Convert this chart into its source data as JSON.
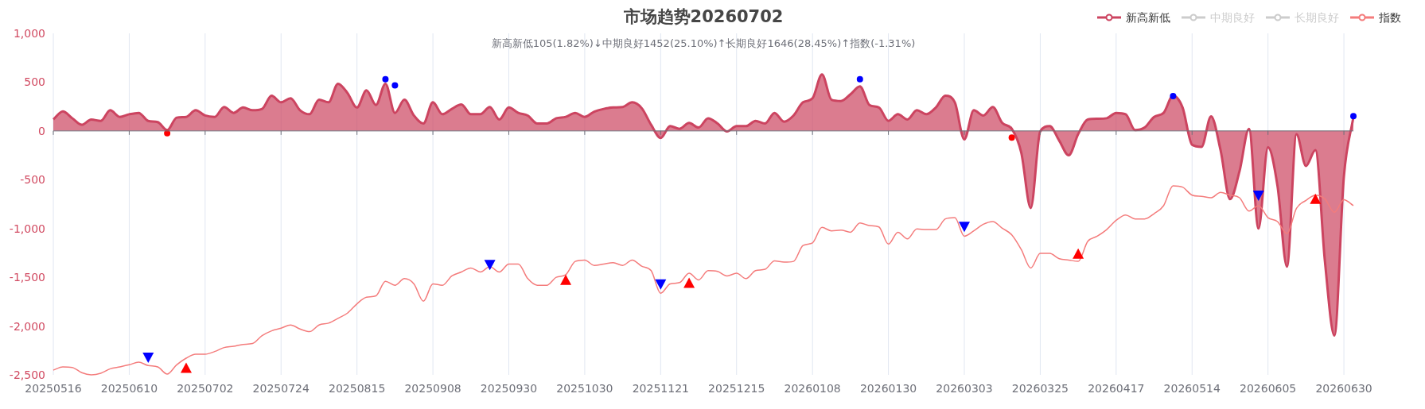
{
  "chart_data": {
    "type": "area",
    "title": "市场趋势20260702",
    "subtitle": "新高新低105(1.82%)↓中期良好1452(25.10%)↑长期良好1646(28.45%)↑指数(-1.31%)",
    "categories": [
      "20250516",
      null,
      null,
      null,
      null,
      null,
      null,
      null,
      "20250610",
      null,
      null,
      null,
      null,
      null,
      null,
      null,
      "20250702",
      null,
      null,
      null,
      null,
      null,
      null,
      null,
      "20250724",
      null,
      null,
      null,
      null,
      null,
      null,
      null,
      "20250815",
      null,
      null,
      null,
      null,
      null,
      null,
      null,
      "20250908",
      null,
      null,
      null,
      null,
      null,
      null,
      null,
      "20250930",
      null,
      null,
      null,
      null,
      null,
      null,
      null,
      "20251030",
      null,
      null,
      null,
      null,
      null,
      null,
      null,
      "20251121",
      null,
      null,
      null,
      null,
      null,
      null,
      null,
      "20251215",
      null,
      null,
      null,
      null,
      null,
      null,
      null,
      "20260108",
      null,
      null,
      null,
      null,
      null,
      null,
      null,
      "20260130",
      null,
      null,
      null,
      null,
      null,
      null,
      null,
      "20260303",
      null,
      null,
      null,
      null,
      null,
      null,
      null,
      "20260325",
      null,
      null,
      null,
      null,
      null,
      null,
      null,
      "20260417",
      null,
      null,
      null,
      null,
      null,
      null,
      null,
      "20260514",
      null,
      null,
      null,
      null,
      null,
      null,
      null,
      "20260605",
      null,
      null,
      null,
      null,
      null,
      null,
      null,
      "20260630",
      null
    ],
    "ylim": [
      -2500,
      1000
    ],
    "yticks": [
      {
        "value": -2500,
        "label": "-2,500"
      },
      {
        "value": -2000,
        "label": "-2,000"
      },
      {
        "value": -1500,
        "label": "-1,500"
      },
      {
        "value": -1000,
        "label": "-1,000"
      },
      -500,
      0,
      500,
      {
        "value": 1000,
        "label": "1,000"
      }
    ],
    "grid": "x",
    "legend": "top right",
    "series": [
      {
        "name": "新高新低",
        "color": "#cc4460",
        "values": [
          117,
          200,
          130,
          63,
          117,
          103,
          212,
          144,
          171,
          185,
          103,
          90,
          8,
          136,
          144,
          212,
          158,
          144,
          245,
          185,
          240,
          212,
          226,
          361,
          293,
          334,
          212,
          171,
          320,
          293,
          484,
          389,
          240,
          416,
          266,
          484,
          185,
          320,
          158,
          76,
          293,
          171,
          226,
          272,
          171,
          171,
          245,
          117,
          240,
          185,
          158,
          76,
          76,
          130,
          144,
          185,
          144,
          198,
          226,
          240,
          245,
          293,
          234,
          63,
          -73,
          49,
          22,
          82,
          35,
          130,
          76,
          -5,
          49,
          49,
          103,
          76,
          185,
          95,
          158,
          293,
          334,
          579,
          320,
          307,
          375,
          457,
          266,
          240,
          103,
          171,
          117,
          212,
          171,
          240,
          361,
          293,
          -87,
          212,
          158,
          245,
          82,
          22,
          -223,
          -790,
          -5,
          49,
          -100,
          -250,
          -33,
          117,
          125,
          130,
          185,
          171,
          8,
          35,
          144,
          185,
          361,
          240,
          -141,
          -163,
          150,
          -196,
          -700,
          -413,
          22,
          -1000,
          -168,
          -562,
          -1391,
          -33,
          -359,
          -196,
          -1337,
          -2098,
          -467,
          144
        ]
      },
      {
        "name": "中期良好",
        "type": "line",
        "color": "#cccccc",
        "values": [
          null,
          null,
          null,
          null,
          null,
          null,
          null,
          null,
          null,
          null,
          null,
          null,
          null,
          null,
          null,
          null,
          null,
          null,
          null,
          null,
          null,
          null,
          null,
          null,
          null,
          null,
          null,
          null,
          null,
          null,
          null,
          null,
          null,
          null,
          null,
          null,
          null,
          null,
          null,
          null,
          null,
          null,
          null,
          null,
          null,
          null,
          null,
          null,
          null,
          null,
          null,
          null,
          null,
          null,
          null,
          null,
          null,
          null,
          null,
          null,
          null,
          null,
          null,
          null,
          null,
          null,
          null,
          null,
          null,
          null,
          null,
          null,
          null,
          null,
          null,
          null,
          null,
          null,
          null,
          null,
          null,
          null,
          null,
          null,
          null,
          null,
          null,
          null,
          null,
          null,
          null,
          null,
          null,
          null,
          null,
          null,
          null,
          null,
          null,
          null,
          null,
          null,
          null,
          null,
          null,
          null,
          null,
          null,
          null,
          null,
          null,
          null,
          null,
          null,
          null,
          null,
          null,
          null,
          null,
          null,
          null,
          null,
          null,
          null,
          null,
          null,
          null,
          null,
          null,
          null,
          null,
          null,
          null,
          null,
          null,
          null,
          null,
          null
        ]
      },
      {
        "name": "长期良好",
        "type": "line",
        "color": "#cccccc",
        "values": [
          null,
          null,
          null,
          null,
          null,
          null,
          null,
          null,
          null,
          null,
          null,
          null,
          null,
          null,
          null,
          null,
          null,
          null,
          null,
          null,
          null,
          null,
          null,
          null,
          null,
          null,
          null,
          null,
          null,
          null,
          null,
          null,
          null,
          null,
          null,
          null,
          null,
          null,
          null,
          null,
          null,
          null,
          null,
          null,
          null,
          null,
          null,
          null,
          null,
          null,
          null,
          null,
          null,
          null,
          null,
          null,
          null,
          null,
          null,
          null,
          null,
          null,
          null,
          null,
          null,
          null,
          null,
          null,
          null,
          null,
          null,
          null,
          null,
          null,
          null,
          null,
          null,
          null,
          null,
          null,
          null,
          null,
          null,
          null,
          null,
          null,
          null,
          null,
          null,
          null,
          null,
          null,
          null,
          null,
          null,
          null,
          null,
          null,
          null,
          null,
          null,
          null,
          null,
          null,
          null,
          null,
          null,
          null,
          null,
          null,
          null,
          null,
          null,
          null,
          null,
          null,
          null,
          null,
          null,
          null,
          null,
          null,
          null,
          null,
          null,
          null,
          null,
          null,
          null,
          null,
          null,
          null,
          null,
          null,
          null,
          null,
          null,
          null
        ]
      },
      {
        "name": "指数",
        "type": "line",
        "color": "#f47c7c",
        "values": [
          -2451,
          -2418,
          -2424,
          -2478,
          -2500,
          -2484,
          -2438,
          -2418,
          -2397,
          -2370,
          -2405,
          -2418,
          -2492,
          -2397,
          -2329,
          -2288,
          -2288,
          -2261,
          -2220,
          -2207,
          -2188,
          -2179,
          -2098,
          -2049,
          -2022,
          -1989,
          -2030,
          -2057,
          -1989,
          -1970,
          -1921,
          -1867,
          -1772,
          -1704,
          -1690,
          -1541,
          -1582,
          -1514,
          -1568,
          -1745,
          -1568,
          -1582,
          -1486,
          -1446,
          -1405,
          -1446,
          -1391,
          -1446,
          -1364,
          -1364,
          -1514,
          -1582,
          -1582,
          -1500,
          -1473,
          -1337,
          -1323,
          -1378,
          -1364,
          -1351,
          -1378,
          -1323,
          -1386,
          -1432,
          -1663,
          -1568,
          -1554,
          -1459,
          -1527,
          -1432,
          -1440,
          -1486,
          -1459,
          -1514,
          -1432,
          -1418,
          -1332,
          -1345,
          -1337,
          -1174,
          -1147,
          -989,
          -1024,
          -1016,
          -1038,
          -943,
          -970,
          -984,
          -1160,
          -1038,
          -1106,
          -1005,
          -1011,
          -1011,
          -902,
          -889,
          -1079,
          -1024,
          -957,
          -929,
          -997,
          -1065,
          -1215,
          -1405,
          -1255,
          -1255,
          -1310,
          -1323,
          -1337,
          -1133,
          -1079,
          -1011,
          -916,
          -861,
          -902,
          -902,
          -848,
          -766,
          -562,
          -576,
          -658,
          -671,
          -685,
          -630,
          -658,
          -685,
          -821,
          -766,
          -889,
          -929,
          -1052,
          -793,
          -712,
          -658,
          -698,
          -834,
          -705,
          -766
        ]
      },
      {
        "type": "scatter",
        "marker": "circle",
        "color": "#0000ff",
        "values": [
          null,
          null,
          null,
          null,
          null,
          null,
          null,
          null,
          null,
          null,
          null,
          null,
          null,
          null,
          null,
          null,
          null,
          null,
          null,
          null,
          null,
          null,
          null,
          null,
          null,
          null,
          null,
          null,
          null,
          null,
          null,
          null,
          null,
          null,
          null,
          530,
          467,
          null,
          null,
          null,
          null,
          null,
          null,
          null,
          null,
          null,
          null,
          null,
          null,
          null,
          null,
          null,
          null,
          null,
          null,
          null,
          null,
          null,
          null,
          null,
          null,
          null,
          null,
          null,
          null,
          null,
          null,
          null,
          null,
          null,
          null,
          null,
          null,
          null,
          null,
          null,
          null,
          null,
          null,
          null,
          null,
          null,
          null,
          null,
          null,
          530,
          null,
          null,
          null,
          null,
          null,
          null,
          null,
          null,
          null,
          null,
          null,
          null,
          null,
          null,
          null,
          null,
          null,
          null,
          null,
          null,
          null,
          null,
          null,
          null,
          null,
          null,
          null,
          null,
          null,
          null,
          null,
          null,
          356,
          null,
          null,
          null,
          null,
          null,
          null,
          null,
          null,
          null,
          null,
          null,
          null,
          null,
          null,
          null,
          null,
          null,
          null,
          152
        ]
      },
      {
        "type": "scatter",
        "marker": "circle",
        "color": "#ff0000",
        "values": [
          null,
          null,
          null,
          null,
          null,
          null,
          null,
          null,
          null,
          null,
          null,
          null,
          -24,
          null,
          null,
          null,
          null,
          null,
          null,
          null,
          null,
          null,
          null,
          null,
          null,
          null,
          null,
          null,
          null,
          null,
          null,
          null,
          null,
          null,
          null,
          null,
          null,
          null,
          null,
          null,
          null,
          null,
          null,
          null,
          null,
          null,
          null,
          null,
          null,
          null,
          null,
          null,
          null,
          null,
          null,
          null,
          null,
          null,
          null,
          null,
          null,
          null,
          null,
          null,
          null,
          null,
          null,
          null,
          null,
          null,
          null,
          null,
          null,
          null,
          null,
          null,
          null,
          null,
          null,
          null,
          null,
          null,
          null,
          null,
          null,
          null,
          null,
          null,
          null,
          null,
          null,
          null,
          null,
          null,
          null,
          null,
          null,
          null,
          null,
          null,
          null,
          -68,
          null,
          null,
          null,
          null,
          null,
          null,
          null,
          null,
          null,
          null,
          null,
          null,
          null,
          null,
          null,
          null,
          null,
          null,
          null,
          null,
          null,
          null,
          null,
          null,
          null,
          null,
          null,
          null,
          null,
          null,
          null,
          null,
          null,
          null,
          null,
          null
        ]
      },
      {
        "type": "scatter",
        "marker": "triangle-down",
        "color": "#0000ff",
        "values": [
          null,
          null,
          null,
          null,
          null,
          null,
          null,
          null,
          null,
          null,
          -2320,
          null,
          null,
          null,
          null,
          null,
          null,
          null,
          null,
          null,
          null,
          null,
          null,
          null,
          null,
          null,
          null,
          null,
          null,
          null,
          null,
          null,
          null,
          null,
          null,
          null,
          null,
          null,
          null,
          null,
          null,
          null,
          null,
          null,
          null,
          null,
          -1370,
          null,
          null,
          null,
          null,
          null,
          null,
          null,
          null,
          null,
          null,
          null,
          null,
          null,
          null,
          null,
          null,
          null,
          -1570,
          null,
          null,
          null,
          null,
          null,
          null,
          null,
          null,
          null,
          null,
          null,
          null,
          null,
          null,
          null,
          null,
          null,
          null,
          null,
          null,
          null,
          null,
          null,
          null,
          null,
          null,
          null,
          null,
          null,
          null,
          null,
          -980,
          null,
          null,
          null,
          null,
          null,
          null,
          null,
          null,
          null,
          null,
          null,
          null,
          null,
          null,
          null,
          null,
          null,
          null,
          null,
          null,
          null,
          null,
          null,
          null,
          null,
          null,
          null,
          null,
          null,
          null,
          -660,
          null,
          null,
          null,
          null,
          null,
          null,
          null,
          null,
          null,
          null
        ]
      },
      {
        "type": "scatter",
        "marker": "triangle",
        "color": "#ff0000",
        "values": [
          null,
          null,
          null,
          null,
          null,
          null,
          null,
          null,
          null,
          null,
          null,
          null,
          null,
          null,
          -2430,
          null,
          null,
          null,
          null,
          null,
          null,
          null,
          null,
          null,
          null,
          null,
          null,
          null,
          null,
          null,
          null,
          null,
          null,
          null,
          null,
          null,
          null,
          null,
          null,
          null,
          null,
          null,
          null,
          null,
          null,
          null,
          null,
          null,
          null,
          null,
          null,
          null,
          null,
          null,
          -1530,
          null,
          null,
          null,
          null,
          null,
          null,
          null,
          null,
          null,
          null,
          null,
          null,
          -1560,
          null,
          null,
          null,
          null,
          null,
          null,
          null,
          null,
          null,
          null,
          null,
          null,
          null,
          null,
          null,
          null,
          null,
          null,
          null,
          null,
          null,
          null,
          null,
          null,
          null,
          null,
          null,
          null,
          null,
          null,
          null,
          null,
          null,
          null,
          null,
          null,
          null,
          null,
          null,
          null,
          -1260,
          null,
          null,
          null,
          null,
          null,
          null,
          null,
          null,
          null,
          null,
          null,
          null,
          null,
          null,
          null,
          null,
          null,
          null,
          null,
          null,
          null,
          null,
          null,
          null,
          -700,
          null,
          null,
          null,
          null
        ]
      }
    ]
  }
}
